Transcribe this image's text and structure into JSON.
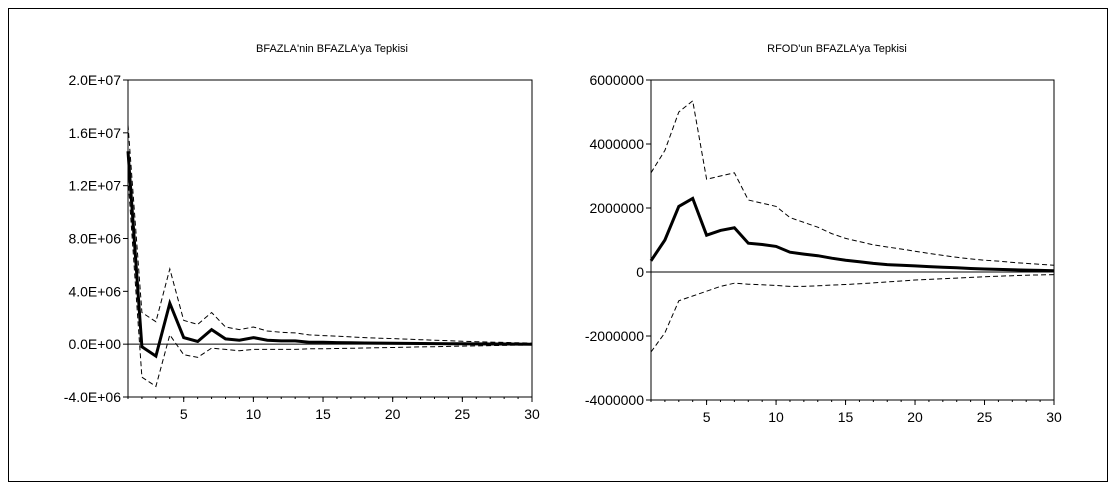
{
  "chart_data": [
    {
      "type": "line",
      "title": "BFAZLA'nin BFAZLA'ya Tepkisi",
      "xlabel": "",
      "ylabel": "",
      "xlim": [
        1,
        30
      ],
      "ylim": [
        -4000000,
        20000000
      ],
      "x_ticks": [
        5,
        10,
        15,
        20,
        25,
        30
      ],
      "y_ticks": [
        -4000000,
        0,
        4000000,
        8000000,
        12000000,
        16000000,
        20000000
      ],
      "y_tick_labels": [
        "-4.0E+06",
        "0.0E+00",
        "4.0E+06",
        "8.0E+06",
        "1.2E+07",
        "1.6E+07",
        "2.0E+07"
      ],
      "x": [
        1,
        2,
        3,
        4,
        5,
        6,
        7,
        8,
        9,
        10,
        11,
        12,
        13,
        14,
        15,
        16,
        17,
        18,
        19,
        20,
        21,
        22,
        23,
        24,
        25,
        26,
        27,
        28,
        29,
        30
      ],
      "series": [
        {
          "role": "response",
          "style": "solid",
          "values": [
            14600000,
            -200000,
            -900000,
            3100000,
            500000,
            200000,
            1100000,
            400000,
            300000,
            500000,
            300000,
            250000,
            250000,
            150000,
            150000,
            120000,
            100000,
            90000,
            80000,
            70000,
            60000,
            50000,
            40000,
            30000,
            25000,
            20000,
            15000,
            10000,
            5000,
            0
          ]
        },
        {
          "role": "upper-band",
          "style": "dashed",
          "values": [
            16600000,
            2400000,
            1700000,
            5700000,
            1800000,
            1500000,
            2400000,
            1300000,
            1100000,
            1300000,
            1000000,
            900000,
            850000,
            700000,
            650000,
            600000,
            550000,
            500000,
            450000,
            420000,
            380000,
            340000,
            300000,
            260000,
            220000,
            190000,
            160000,
            130000,
            100000,
            80000
          ]
        },
        {
          "role": "lower-band",
          "style": "dashed",
          "values": [
            12600000,
            -2500000,
            -3200000,
            700000,
            -800000,
            -1000000,
            -300000,
            -400000,
            -500000,
            -400000,
            -400000,
            -400000,
            -400000,
            -350000,
            -350000,
            -330000,
            -310000,
            -290000,
            -270000,
            -250000,
            -230000,
            -210000,
            -190000,
            -170000,
            -150000,
            -130000,
            -110000,
            -90000,
            -70000,
            -60000
          ]
        }
      ]
    },
    {
      "type": "line",
      "title": "RFOD'un BFAZLA'ya Tepkisi",
      "xlabel": "",
      "ylabel": "",
      "xlim": [
        1,
        30
      ],
      "ylim": [
        -4000000,
        6000000
      ],
      "x_ticks": [
        5,
        10,
        15,
        20,
        25,
        30
      ],
      "y_ticks": [
        -4000000,
        -2000000,
        0,
        2000000,
        4000000,
        6000000
      ],
      "y_tick_labels": [
        "-4000000",
        "-2000000",
        "0",
        "2000000",
        "4000000",
        "6000000"
      ],
      "x": [
        1,
        2,
        3,
        4,
        5,
        6,
        7,
        8,
        9,
        10,
        11,
        12,
        13,
        14,
        15,
        16,
        17,
        18,
        19,
        20,
        21,
        22,
        23,
        24,
        25,
        26,
        27,
        28,
        29,
        30
      ],
      "series": [
        {
          "role": "response",
          "style": "solid",
          "values": [
            350000,
            1000000,
            2050000,
            2300000,
            1150000,
            1300000,
            1380000,
            900000,
            860000,
            800000,
            620000,
            560000,
            510000,
            430000,
            370000,
            320000,
            270000,
            230000,
            210000,
            190000,
            170000,
            150000,
            130000,
            110000,
            95000,
            80000,
            70000,
            60000,
            50000,
            40000
          ]
        },
        {
          "role": "upper-band",
          "style": "dashed",
          "values": [
            3100000,
            3800000,
            5000000,
            5350000,
            2900000,
            3000000,
            3100000,
            2250000,
            2150000,
            2050000,
            1700000,
            1550000,
            1400000,
            1200000,
            1050000,
            950000,
            850000,
            780000,
            720000,
            650000,
            580000,
            520000,
            460000,
            410000,
            370000,
            340000,
            300000,
            270000,
            240000,
            210000
          ]
        },
        {
          "role": "lower-band",
          "style": "dashed",
          "values": [
            -2500000,
            -1900000,
            -900000,
            -750000,
            -600000,
            -450000,
            -350000,
            -380000,
            -400000,
            -420000,
            -450000,
            -450000,
            -430000,
            -410000,
            -390000,
            -370000,
            -340000,
            -310000,
            -280000,
            -250000,
            -230000,
            -210000,
            -190000,
            -170000,
            -150000,
            -130000,
            -115000,
            -100000,
            -90000,
            -80000
          ]
        }
      ]
    }
  ]
}
